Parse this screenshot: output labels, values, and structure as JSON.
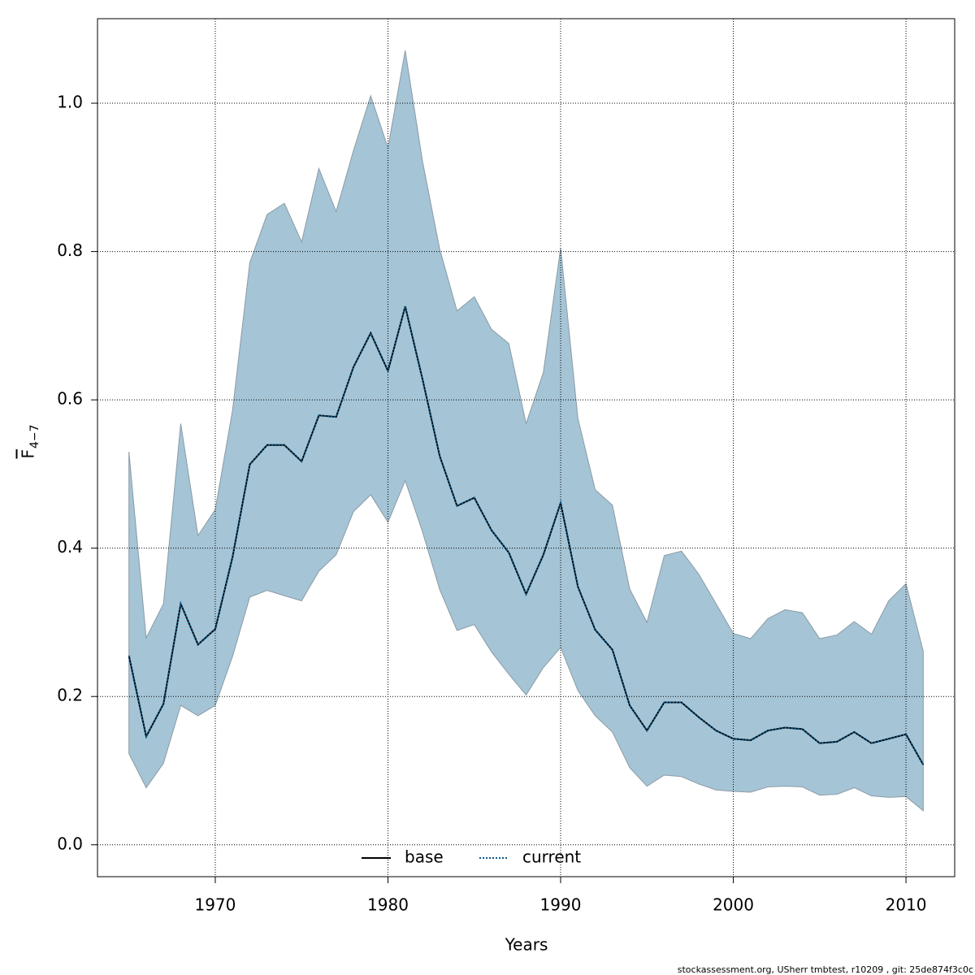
{
  "chart_data": {
    "type": "line",
    "xlabel": "Years",
    "ylabel": "F",
    "ylabel_subscript": "4−7",
    "footer": "stockassessment.org, USherr tmbtest, r10209 , git: 25de874f3c0c",
    "x": [
      1965,
      1966,
      1967,
      1968,
      1969,
      1970,
      1971,
      1972,
      1973,
      1974,
      1975,
      1976,
      1977,
      1978,
      1979,
      1980,
      1981,
      1982,
      1983,
      1984,
      1985,
      1986,
      1987,
      1988,
      1989,
      1990,
      1991,
      1992,
      1993,
      1994,
      1995,
      1996,
      1997,
      1998,
      1999,
      2000,
      2001,
      2002,
      2003,
      2004,
      2005,
      2006,
      2007,
      2008,
      2009,
      2010,
      2011
    ],
    "series": [
      {
        "name": "base",
        "color": "#000000",
        "dash": "solid",
        "values": [
          0.255,
          0.146,
          0.19,
          0.325,
          0.27,
          0.291,
          0.388,
          0.513,
          0.539,
          0.539,
          0.517,
          0.579,
          0.577,
          0.644,
          0.69,
          0.639,
          0.726,
          0.628,
          0.524,
          0.457,
          0.468,
          0.424,
          0.394,
          0.338,
          0.391,
          0.461,
          0.348,
          0.29,
          0.263,
          0.188,
          0.154,
          0.192,
          0.192,
          0.172,
          0.154,
          0.143,
          0.141,
          0.154,
          0.158,
          0.156,
          0.137,
          0.139,
          0.152,
          0.137,
          0.143,
          0.149,
          0.108
        ]
      },
      {
        "name": "current",
        "color": "#0a5a8a",
        "dash": "dotted",
        "values": [
          0.255,
          0.146,
          0.19,
          0.325,
          0.27,
          0.291,
          0.388,
          0.513,
          0.539,
          0.539,
          0.517,
          0.579,
          0.577,
          0.644,
          0.69,
          0.639,
          0.726,
          0.628,
          0.524,
          0.457,
          0.468,
          0.424,
          0.394,
          0.338,
          0.391,
          0.461,
          0.348,
          0.29,
          0.263,
          0.188,
          0.154,
          0.192,
          0.192,
          0.172,
          0.154,
          0.143,
          0.141,
          0.154,
          0.158,
          0.156,
          0.137,
          0.139,
          0.152,
          0.137,
          0.143,
          0.149,
          0.108
        ]
      }
    ],
    "band": {
      "color": "#a5c4d5",
      "upper": [
        0.53,
        0.279,
        0.325,
        0.568,
        0.417,
        0.452,
        0.586,
        0.785,
        0.85,
        0.865,
        0.813,
        0.912,
        0.854,
        0.936,
        1.01,
        0.94,
        1.071,
        0.922,
        0.803,
        0.72,
        0.739,
        0.695,
        0.676,
        0.568,
        0.637,
        0.805,
        0.575,
        0.479,
        0.458,
        0.345,
        0.3,
        0.39,
        0.396,
        0.365,
        0.325,
        0.285,
        0.278,
        0.305,
        0.317,
        0.313,
        0.278,
        0.283,
        0.301,
        0.284,
        0.329,
        0.352,
        0.261
      ],
      "lower": [
        0.123,
        0.077,
        0.11,
        0.188,
        0.174,
        0.188,
        0.254,
        0.334,
        0.343,
        0.336,
        0.329,
        0.369,
        0.391,
        0.449,
        0.472,
        0.435,
        0.491,
        0.422,
        0.344,
        0.289,
        0.297,
        0.26,
        0.23,
        0.202,
        0.239,
        0.266,
        0.208,
        0.174,
        0.152,
        0.104,
        0.079,
        0.094,
        0.092,
        0.082,
        0.074,
        0.072,
        0.071,
        0.078,
        0.079,
        0.078,
        0.067,
        0.068,
        0.077,
        0.066,
        0.064,
        0.065,
        0.046
      ]
    },
    "xlim": [
      1963.18,
      2012.82
    ],
    "ylim": [
      -0.043,
      1.114
    ],
    "xticks": [
      1970,
      1980,
      1990,
      2000,
      2010
    ],
    "yticks": [
      {
        "value": 0,
        "label": "0.0"
      },
      0.2,
      0.4,
      0.6,
      0.8,
      {
        "value": 1,
        "label": "1.0"
      }
    ],
    "grid": true,
    "legend": "bottom"
  }
}
